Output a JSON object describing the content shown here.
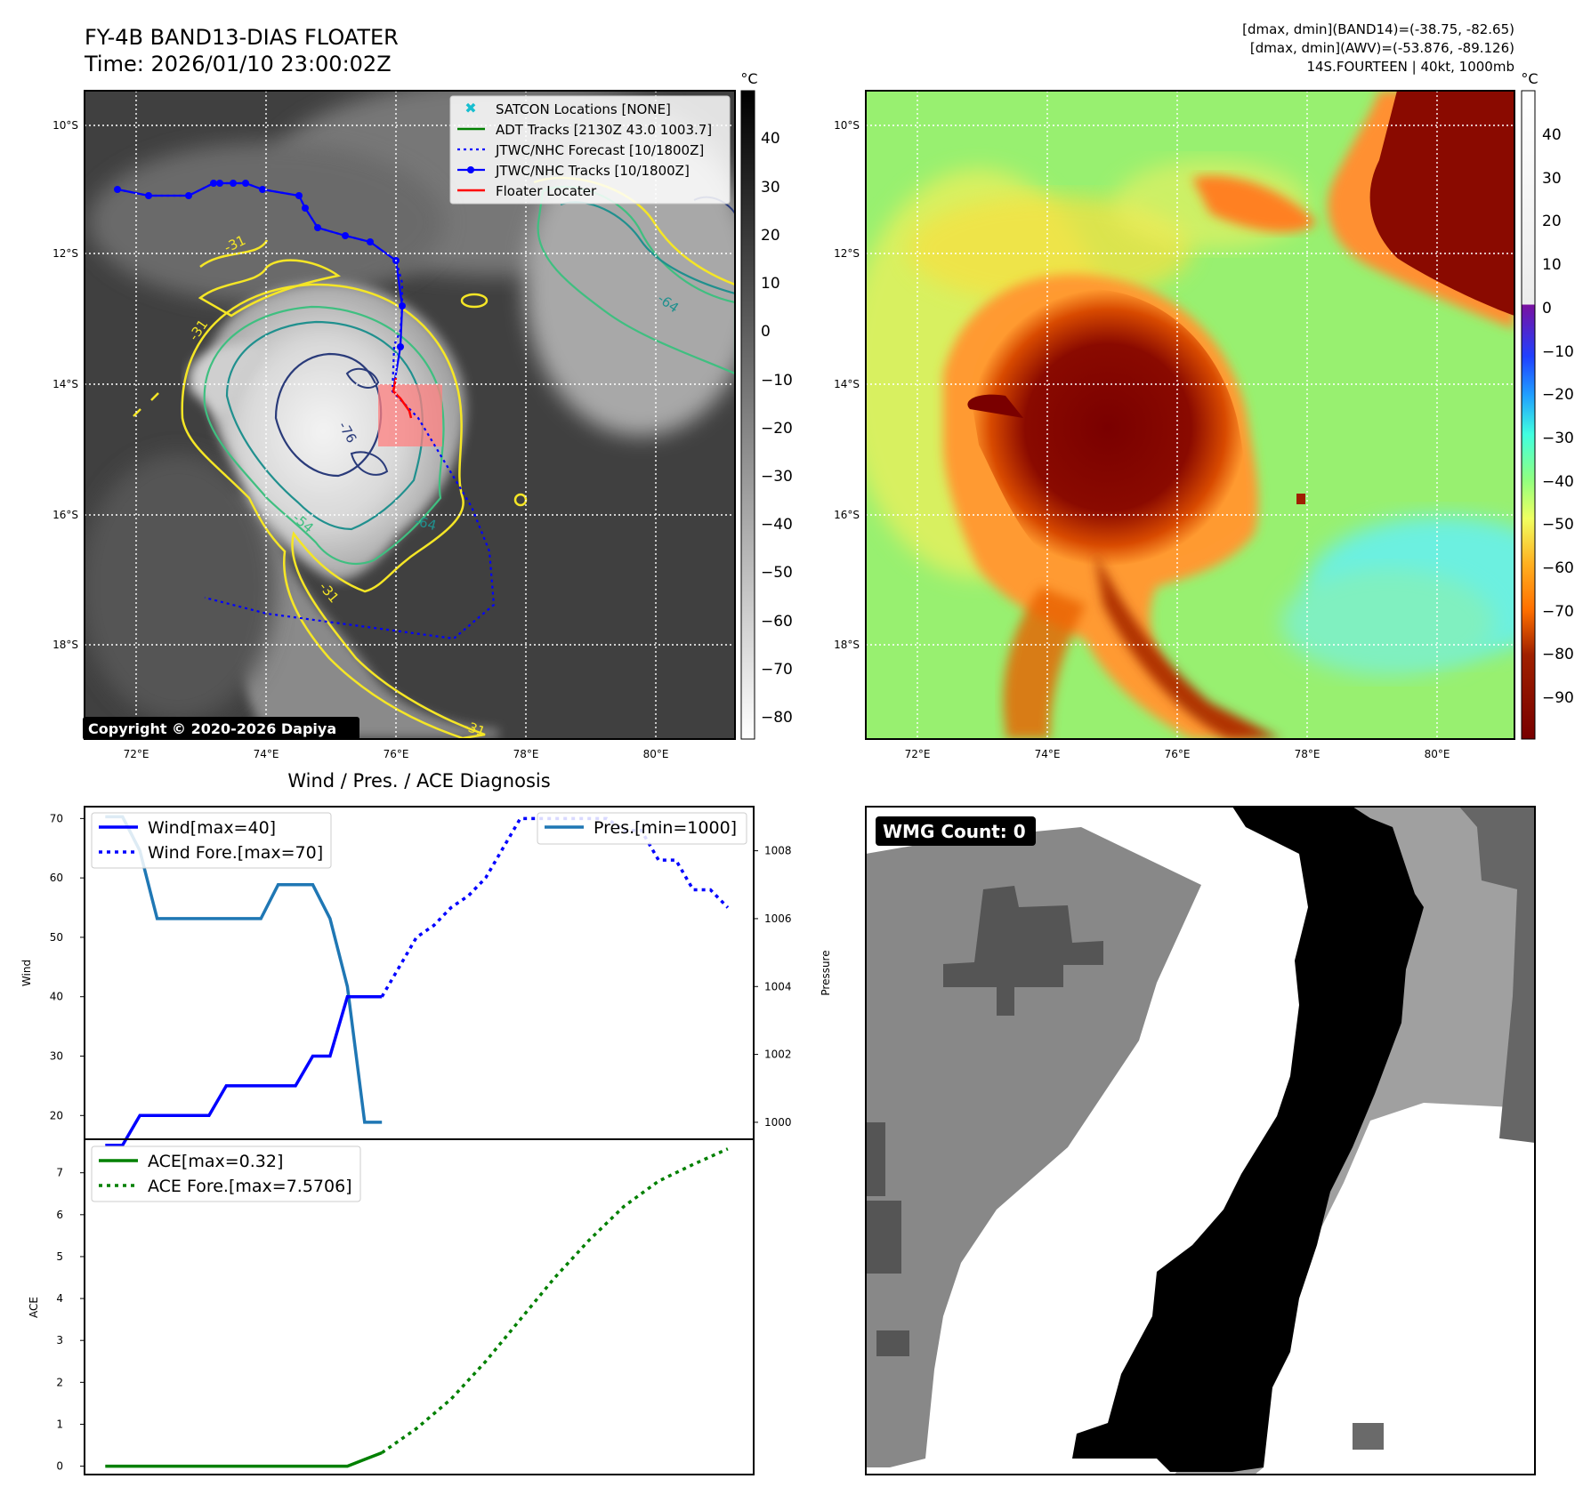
{
  "header": {
    "title": "FY-4B BAND13-DIAS FLOATER",
    "time": "Time: 2026/01/10 23:00:02Z",
    "info_band14": "[dmax, dmin](BAND14)=(-38.75, -82.65)",
    "info_awv": "[dmax, dmin](AWV)=(-53.876, -89.126)",
    "info_storm": "14S.FOURTEEN | 40kt, 1000mb"
  },
  "map": {
    "lat_labels": [
      "10°S",
      "12°S",
      "14°S",
      "16°S",
      "18°S"
    ],
    "lon_labels": [
      "72°E",
      "74°E",
      "76°E",
      "78°E",
      "80°E"
    ],
    "copyright": "Copyright © 2020-2026 Dapiya",
    "contour_labels": [
      "-31",
      "-31",
      "-76",
      "-54",
      "-64",
      "-31",
      "-31",
      "-64"
    ],
    "legend": [
      {
        "label": "SATCON Locations [NONE]",
        "color": "#17becf"
      },
      {
        "label": "ADT Tracks [2130Z 43.0 1003.7]",
        "color": "#008000"
      },
      {
        "label": "JTWC/NHC Forecast [10/1800Z]",
        "color": "#0000ff"
      },
      {
        "label": "JTWC/NHC Tracks [10/1800Z]",
        "color": "#0000ff"
      },
      {
        "label": "Floater Locater",
        "color": "#ff0000"
      }
    ],
    "colorbar_gray": {
      "unit": "°C",
      "ticks": [
        "40",
        "30",
        "20",
        "10",
        "0",
        "−10",
        "−20",
        "−30",
        "−40",
        "−50",
        "−60",
        "−70",
        "−80"
      ]
    },
    "colorbar_awv": {
      "unit": "°C",
      "ticks": [
        "40",
        "30",
        "20",
        "10",
        "0",
        "−10",
        "−20",
        "−30",
        "−40",
        "−50",
        "−60",
        "−70",
        "−80",
        "−90"
      ]
    }
  },
  "diag": {
    "title": "Wind / Pres. / ACE Diagnosis",
    "wind_ylabel": "Wind",
    "pres_ylabel": "Pressure",
    "ace_ylabel": "ACE",
    "wind_ticks": [
      "20",
      "30",
      "40",
      "50",
      "60",
      "70"
    ],
    "pres_ticks": [
      "1000",
      "1002",
      "1004",
      "1006",
      "1008"
    ],
    "ace_ticks": [
      "0",
      "1",
      "2",
      "3",
      "4",
      "5",
      "6",
      "7"
    ],
    "legend_wind": "Wind[max=40]",
    "legend_wind_fore": "Wind Fore.[max=70]",
    "legend_pres": "Pres.[min=1000]",
    "legend_ace": "ACE[max=0.32]",
    "legend_ace_fore": "ACE Fore.[max=7.5706]",
    "wmg": "WMG Count: 0"
  },
  "colors": {
    "wind": "#0000ff",
    "pres": "#1f77b4",
    "ace": "#008000"
  },
  "chart_data": [
    {
      "type": "line",
      "ylabel": "Wind",
      "ylim": [
        16,
        72
      ],
      "series": [
        {
          "name": "Wind[max=40]",
          "x": [
            0,
            1,
            2,
            3,
            4,
            5,
            6,
            7,
            8,
            9,
            10,
            11,
            12,
            13,
            14,
            15,
            16
          ],
          "values": [
            15,
            15,
            20,
            20,
            20,
            20,
            20,
            25,
            25,
            25,
            25,
            25,
            30,
            30,
            40,
            40,
            40
          ]
        },
        {
          "name": "Wind Fore.[max=70]",
          "x": [
            16,
            17,
            18,
            19,
            20,
            21,
            22,
            23,
            24,
            25,
            26,
            27,
            28,
            29,
            30,
            31,
            32,
            33,
            34,
            35,
            36
          ],
          "values": [
            40,
            45,
            50,
            52,
            55,
            57,
            60,
            65,
            70,
            70,
            70,
            70,
            70,
            70,
            68,
            68,
            63,
            63,
            58,
            58,
            55
          ]
        },
        {
          "name": "Pres.[min=1000]",
          "x": [
            0,
            1,
            2,
            3,
            4,
            5,
            6,
            7,
            8,
            9,
            10,
            11,
            12,
            13,
            14,
            15,
            16
          ],
          "values": [
            1009.0,
            1009.0,
            1008.0,
            1006.0,
            1006.0,
            1006.0,
            1006.0,
            1006.0,
            1006.0,
            1006.0,
            1007.0,
            1007.0,
            1007.0,
            1006.0,
            1004.0,
            1000.0,
            1000.0
          ]
        }
      ],
      "pres_ylim": [
        999.5,
        1009.3
      ]
    },
    {
      "type": "line",
      "ylabel": "ACE",
      "ylim": [
        -0.2,
        7.8
      ],
      "series": [
        {
          "name": "ACE[max=0.32]",
          "x": [
            0,
            1,
            2,
            3,
            4,
            5,
            6,
            7,
            8,
            9,
            10,
            11,
            12,
            13,
            14,
            15,
            16
          ],
          "values": [
            0,
            0,
            0,
            0,
            0,
            0,
            0,
            0,
            0,
            0,
            0,
            0,
            0,
            0,
            0,
            0.16,
            0.32
          ]
        },
        {
          "name": "ACE Fore.[max=7.5706]",
          "x": [
            16,
            18,
            20,
            22,
            24,
            26,
            28,
            30,
            32,
            34,
            36
          ],
          "values": [
            0.32,
            0.9,
            1.6,
            2.5,
            3.5,
            4.5,
            5.4,
            6.2,
            6.8,
            7.2,
            7.57
          ]
        }
      ]
    }
  ]
}
